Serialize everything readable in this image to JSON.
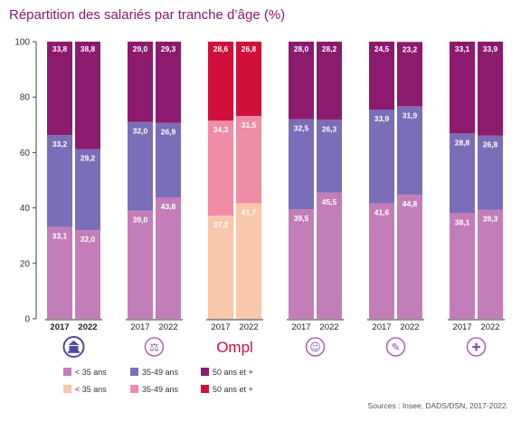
{
  "title": "Répartition des salariés par tranche d’âge (%)",
  "source": "Sources : Insee, DADS/DSN, 2017-2022.",
  "brand_text": "Ompl",
  "colors": {
    "lt35": "#c37eb9",
    "mid": "#7b6db8",
    "ge50": "#8c1a6e",
    "ompl_lt35": "#f9c7ac",
    "ompl_mid": "#f08ca6",
    "ompl_ge50": "#d0103a",
    "title": "#8a1a6e"
  },
  "chart_data": {
    "type": "bar",
    "stacked": true,
    "ylim": [
      0,
      100
    ],
    "yticks": [
      0,
      20,
      40,
      60,
      80,
      100
    ],
    "grid": false,
    "categories": [
      "2017",
      "2022",
      "2017",
      "2022",
      "2017",
      "2022",
      "2017",
      "2022",
      "2017",
      "2022",
      "2017",
      "2022"
    ],
    "groups": [
      {
        "icon": "bank-icon",
        "bold_years": true,
        "palette": "standard",
        "years": [
          "2017",
          "2022"
        ],
        "lt35": [
          33.1,
          32.0
        ],
        "mid": [
          33.2,
          29.2
        ],
        "ge50": [
          33.8,
          38.8
        ],
        "labels_lt35": [
          "33,1",
          "32,0"
        ],
        "labels_mid": [
          "33,2",
          "29,2"
        ],
        "labels_ge50": [
          "33,8",
          "38,8"
        ]
      },
      {
        "icon": "scales-icon",
        "bold_years": false,
        "palette": "standard",
        "years": [
          "2017",
          "2022"
        ],
        "lt35": [
          39.0,
          43.8
        ],
        "mid": [
          32.0,
          26.9
        ],
        "ge50": [
          29.0,
          29.3
        ],
        "labels_lt35": [
          "39,0",
          "43,8"
        ],
        "labels_mid": [
          "32,0",
          "26,9"
        ],
        "labels_ge50": [
          "29,0",
          "29,3"
        ]
      },
      {
        "icon": "ompl-logo",
        "bold_years": false,
        "palette": "ompl",
        "years": [
          "2017",
          "2022"
        ],
        "lt35": [
          37.2,
          41.7
        ],
        "mid": [
          34.3,
          31.5
        ],
        "ge50": [
          28.6,
          26.8
        ],
        "labels_lt35": [
          "37,2",
          "41,7"
        ],
        "labels_mid": [
          "34,3",
          "31,5"
        ],
        "labels_ge50": [
          "28,6",
          "26,8"
        ]
      },
      {
        "icon": "person-icon",
        "bold_years": false,
        "palette": "standard",
        "years": [
          "2017",
          "2022"
        ],
        "lt35": [
          39.5,
          45.5
        ],
        "mid": [
          32.5,
          26.3
        ],
        "ge50": [
          28.0,
          28.2
        ],
        "labels_lt35": [
          "39,5",
          "45,5"
        ],
        "labels_mid": [
          "32,5",
          "26,3"
        ],
        "labels_ge50": [
          "28,0",
          "28,2"
        ]
      },
      {
        "icon": "graduation-cap-icon",
        "bold_years": false,
        "palette": "standard",
        "years": [
          "2017",
          "2022"
        ],
        "lt35": [
          41.6,
          44.8
        ],
        "mid": [
          33.9,
          31.9
        ],
        "ge50": [
          24.5,
          23.2
        ],
        "labels_lt35": [
          "41,6",
          "44,8"
        ],
        "labels_mid": [
          "33,9",
          "31,9"
        ],
        "labels_ge50": [
          "24,5",
          "23,2"
        ]
      },
      {
        "icon": "medical-icon",
        "bold_years": false,
        "palette": "standard",
        "years": [
          "2017",
          "2022"
        ],
        "lt35": [
          38.1,
          39.3
        ],
        "mid": [
          28.8,
          26.8
        ],
        "ge50": [
          33.1,
          33.9
        ],
        "labels_lt35": [
          "38,1",
          "39,3"
        ],
        "labels_mid": [
          "28,8",
          "26,8"
        ],
        "labels_ge50": [
          "33,1",
          "33,9"
        ]
      }
    ],
    "legend": {
      "placement": "bottom-left",
      "rows": [
        [
          {
            "label": "< 35 ans",
            "color_key": "lt35"
          },
          {
            "label": "35-49 ans",
            "color_key": "mid"
          },
          {
            "label": "50 ans et +",
            "color_key": "ge50"
          }
        ],
        [
          {
            "label": "< 35 ans",
            "color_key": "ompl_lt35"
          },
          {
            "label": "35-49 ans",
            "color_key": "ompl_mid"
          },
          {
            "label": "50 ans et +",
            "color_key": "ompl_ge50"
          }
        ]
      ]
    }
  }
}
